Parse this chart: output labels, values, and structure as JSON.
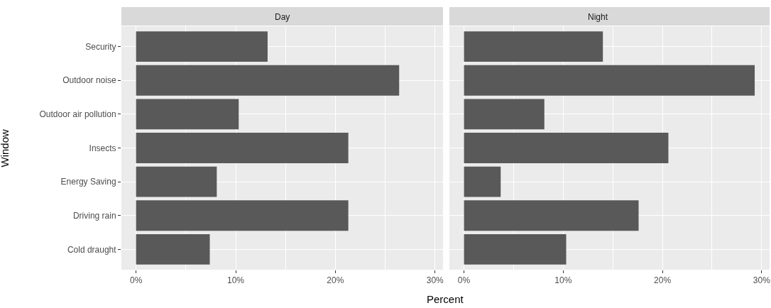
{
  "chart_data": [
    {
      "type": "bar",
      "orientation": "horizontal",
      "title": "Day",
      "ylabel": "Window",
      "xlabel": "Percent",
      "categories": [
        "Security",
        "Outdoor noise",
        "Outdoor air pollution",
        "Insects",
        "Energy Saving",
        "Driving rain",
        "Cold draught"
      ],
      "values": [
        13.2,
        26.4,
        10.3,
        21.3,
        8.1,
        21.3,
        7.4
      ],
      "color": "#595959",
      "xlim": [
        -1.47,
        30.8
      ],
      "xticks": [
        {
          "value": 0,
          "label": "0%"
        },
        {
          "value": 5,
          "label": null
        },
        {
          "value": 10,
          "label": "10%"
        },
        {
          "value": 15,
          "label": null
        },
        {
          "value": 20,
          "label": "20%"
        },
        {
          "value": 25,
          "label": null
        },
        {
          "value": 30,
          "label": "30%"
        }
      ],
      "grid": true,
      "legend": false
    },
    {
      "type": "bar",
      "orientation": "horizontal",
      "title": "Night",
      "categories": [
        null,
        null,
        null,
        null,
        null,
        null,
        null
      ],
      "values": [
        14.0,
        29.3,
        8.1,
        20.6,
        3.7,
        17.6,
        10.3
      ],
      "color": "#595959",
      "xlim": [
        -1.47,
        30.8
      ],
      "xticks": [
        {
          "value": 0,
          "label": "0%"
        },
        {
          "value": 5,
          "label": null
        },
        {
          "value": 10,
          "label": "10%"
        },
        {
          "value": 15,
          "label": null
        },
        {
          "value": 20,
          "label": "20%"
        },
        {
          "value": 25,
          "label": null
        },
        {
          "value": 30,
          "label": "30%"
        }
      ],
      "grid": true,
      "legend": false,
      "tick_labels": "x"
    }
  ]
}
